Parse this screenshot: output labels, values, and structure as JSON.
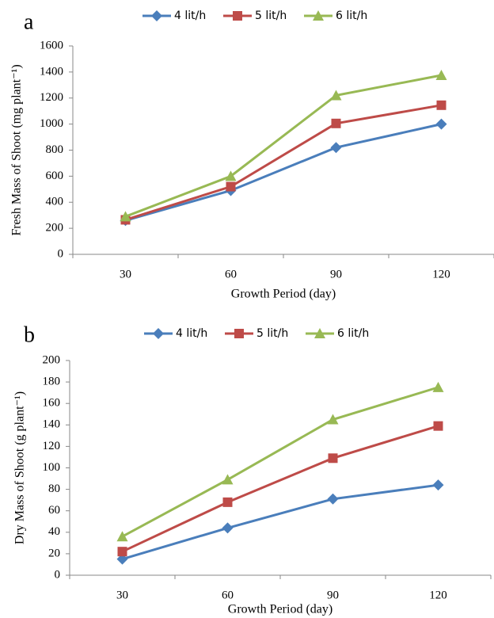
{
  "chart_data": [
    {
      "type": "line",
      "label": "a",
      "x_label": "Growth Period (day)",
      "y_label": "Fresh Mass of Shoot (mg plant⁻¹)",
      "categories": [
        "30",
        "60",
        "90",
        "120"
      ],
      "series": [
        {
          "name": "4 lit/h",
          "color": "#4a7ebb",
          "marker": "diamond",
          "values": [
            260,
            490,
            820,
            1000
          ]
        },
        {
          "name": "5 lit/h",
          "color": "#be4b48",
          "marker": "square",
          "values": [
            265,
            520,
            1005,
            1145
          ]
        },
        {
          "name": "6 lit/h",
          "color": "#98b954",
          "marker": "triangle",
          "values": [
            290,
            600,
            1220,
            1375
          ]
        }
      ],
      "ylim": [
        0,
        1600
      ],
      "yticks": [
        0,
        200,
        400,
        600,
        800,
        1000,
        1200,
        1400,
        1600
      ],
      "grid": false,
      "legend": "top"
    },
    {
      "type": "line",
      "label": "b",
      "x_label": "Growth Period (day)",
      "y_label": "Dry Mass of Shoot (g plant⁻¹)",
      "categories": [
        "30",
        "60",
        "90",
        "120"
      ],
      "series": [
        {
          "name": "4 lit/h",
          "color": "#4a7ebb",
          "marker": "diamond",
          "values": [
            15,
            44,
            71,
            84
          ]
        },
        {
          "name": "5 lit/h",
          "color": "#be4b48",
          "marker": "square",
          "values": [
            22,
            68,
            109,
            139
          ]
        },
        {
          "name": "6 lit/h",
          "color": "#98b954",
          "marker": "triangle",
          "values": [
            36,
            89,
            145,
            175
          ]
        }
      ],
      "ylim": [
        0,
        200
      ],
      "yticks": [
        0,
        20,
        40,
        60,
        80,
        100,
        120,
        140,
        160,
        180,
        200
      ],
      "grid": false,
      "legend": "top"
    }
  ]
}
